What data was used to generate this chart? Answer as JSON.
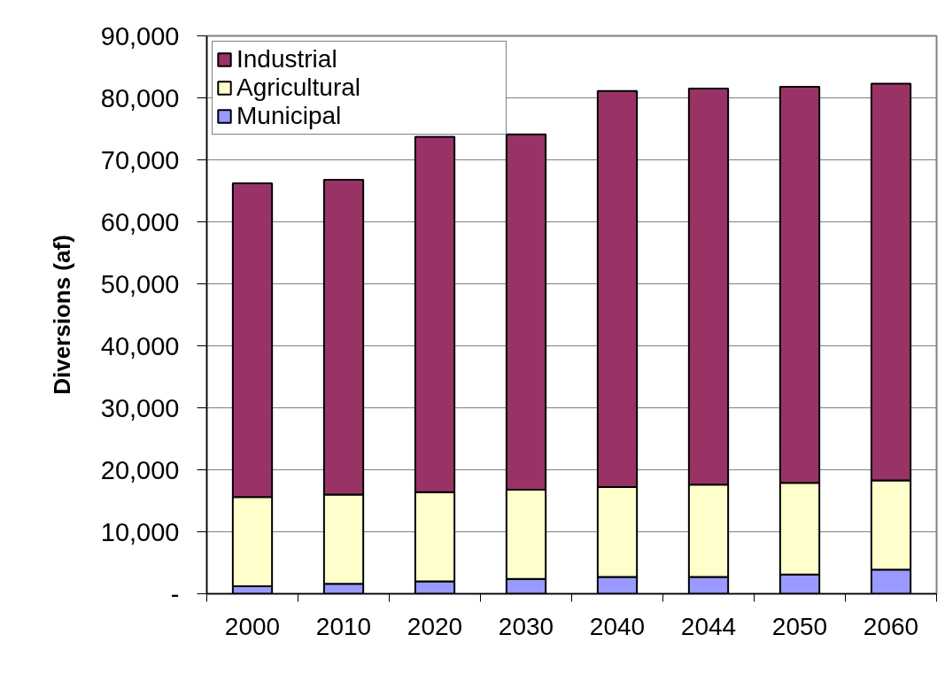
{
  "chart_data": {
    "type": "bar",
    "stacked": true,
    "ylabel": "Diversions (af)",
    "categories": [
      "2000",
      "2010",
      "2020",
      "2030",
      "2040",
      "2044",
      "2050",
      "2060"
    ],
    "series": [
      {
        "name": "Municipal",
        "color": "#9999ff",
        "values": [
          1200,
          1600,
          2000,
          2400,
          2700,
          2700,
          3100,
          3900
        ]
      },
      {
        "name": "Agricultural",
        "color": "#ffffcc",
        "values": [
          14400,
          14400,
          14400,
          14400,
          14500,
          14900,
          14800,
          14400
        ]
      },
      {
        "name": "Industrial",
        "color": "#993366",
        "values": [
          50600,
          50800,
          57300,
          57300,
          63900,
          63900,
          63900,
          64000
        ]
      }
    ],
    "ylim": [
      0,
      90000
    ],
    "yticks": [
      {
        "value": 0,
        "label": "-"
      },
      {
        "value": 10000,
        "label": "10,000"
      },
      {
        "value": 20000,
        "label": "20,000"
      },
      {
        "value": 30000,
        "label": "30,000"
      },
      {
        "value": 40000,
        "label": "40,000"
      },
      {
        "value": 50000,
        "label": "50,000"
      },
      {
        "value": 60000,
        "label": "60,000"
      },
      {
        "value": 70000,
        "label": "70,000"
      },
      {
        "value": 80000,
        "label": "80,000"
      },
      {
        "value": 90000,
        "label": "90,000"
      }
    ],
    "grid": "y",
    "legend": "top left"
  }
}
